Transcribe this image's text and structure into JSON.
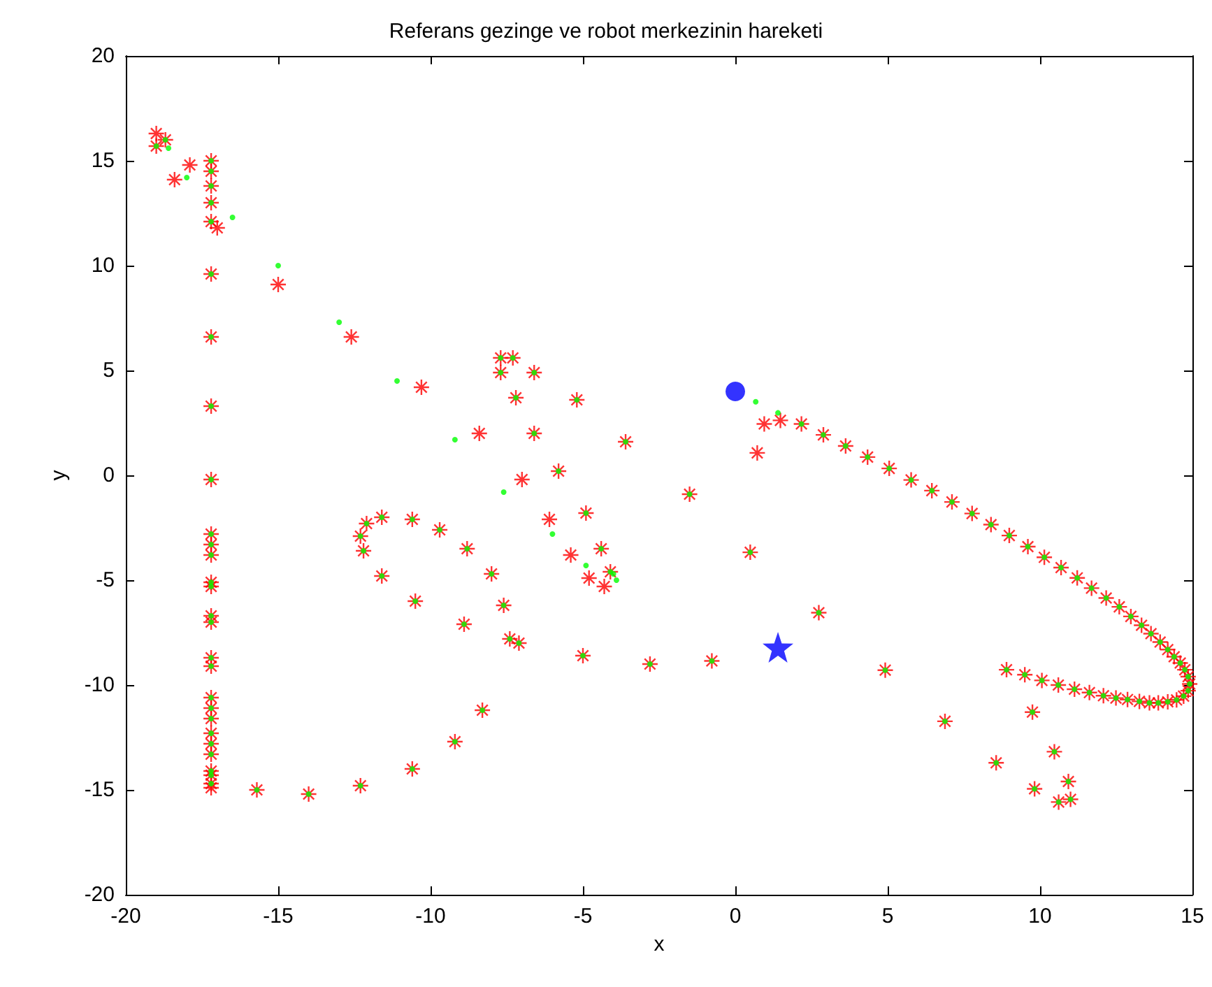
{
  "chart_data": {
    "type": "scatter",
    "title": "Referans gezinge ve robot merkezinin hareketi",
    "xlabel": "x",
    "ylabel": "y",
    "xlim": [
      -20,
      15
    ],
    "ylim": [
      -20,
      20
    ],
    "xticks": [
      -20,
      -15,
      -10,
      -5,
      0,
      5,
      10,
      15
    ],
    "yticks": [
      -20,
      -15,
      -10,
      -5,
      0,
      5,
      10,
      15,
      20
    ],
    "grid": false,
    "series": [
      {
        "color": "#ff0000",
        "marker": "cross",
        "x": [
          -19,
          -18.7,
          -19,
          -18.4,
          -17.9,
          -17.2,
          -17.2,
          -17.2,
          -17.2,
          -17.2,
          -17.0,
          -17.2,
          -15,
          -12.6,
          -10.3,
          -17.2,
          -17.2,
          -17.2,
          -7.7,
          -7.3,
          -7.7,
          -6.6,
          -7.2,
          -5.2,
          -6.6,
          -8.4,
          -3.6,
          -7.0,
          -5.8,
          -1.5,
          -6.1,
          -4.9,
          -5.4,
          -4.4,
          -4.8,
          -4.3,
          -4.1,
          0.49,
          2.74,
          -9.7,
          -10.6,
          -11.6,
          -12.1,
          -12.3,
          -12.2,
          -11.6,
          -10.5,
          -8.9,
          -8.0,
          -8.8,
          -7.6,
          -7.4,
          -7.1,
          -8.3,
          -9.2,
          -10.6,
          -12.3,
          -14.0,
          -15.7,
          -5.0,
          -2.8,
          -0.77,
          4.92,
          -17.2,
          -17.2,
          -17.2,
          -17.2,
          -17.2,
          -17.2,
          -17.2,
          -17.2,
          -17.2,
          -17.2,
          -17.2,
          -17.2,
          -17.2,
          -17.2,
          -17.2,
          -17.2,
          -17.2,
          -17.2,
          -17.2,
          0.72,
          0.95,
          1.48,
          2.17,
          2.89,
          3.62,
          4.34,
          5.05,
          5.77,
          6.45,
          7.11,
          7.77,
          8.39,
          8.99,
          9.6,
          10.14,
          10.69,
          11.22,
          11.69,
          12.17,
          12.6,
          12.98,
          13.33,
          13.64,
          13.94,
          14.19,
          14.4,
          14.6,
          14.75,
          14.86,
          14.91,
          14.86,
          14.71,
          14.48,
          14.19,
          13.88,
          13.59,
          13.26,
          12.87,
          12.49,
          12.08,
          11.62,
          11.13,
          10.6,
          10.06,
          9.5,
          8.9,
          6.88,
          9.75,
          8.56,
          10.47,
          9.82,
          10.93,
          10.61,
          11.0
        ],
        "values": [
          16.3,
          16.0,
          15.7,
          14.1,
          14.8,
          15.0,
          14.5,
          13.8,
          13.0,
          12.1,
          11.8,
          9.6,
          9.1,
          6.6,
          4.2,
          6.6,
          3.3,
          -0.2,
          5.6,
          5.6,
          4.9,
          4.9,
          3.7,
          3.6,
          2.0,
          2.0,
          1.6,
          -0.2,
          0.2,
          -0.9,
          -2.1,
          -1.8,
          -3.8,
          -3.5,
          -4.9,
          -5.3,
          -4.6,
          -3.67,
          -6.55,
          -2.6,
          -2.1,
          -2.0,
          -2.3,
          -2.9,
          -3.6,
          -4.8,
          -6.0,
          -7.1,
          -4.7,
          -3.5,
          -6.2,
          -7.8,
          -8.0,
          -11.2,
          -12.7,
          -14.0,
          -14.8,
          -15.2,
          -15.0,
          -8.6,
          -9.0,
          -8.85,
          -9.29,
          -2.8,
          -3.3,
          -3.8,
          -5.1,
          -5.3,
          -6.7,
          -7.0,
          -8.7,
          -9.1,
          -10.6,
          -11.1,
          -11.6,
          -12.3,
          -12.8,
          -13.3,
          -14.1,
          -14.3,
          -14.7,
          -14.9,
          1.07,
          2.45,
          2.62,
          2.45,
          1.93,
          1.4,
          0.87,
          0.33,
          -0.22,
          -0.73,
          -1.27,
          -1.82,
          -2.35,
          -2.87,
          -3.4,
          -3.91,
          -4.4,
          -4.89,
          -5.38,
          -5.85,
          -6.27,
          -6.73,
          -7.15,
          -7.55,
          -7.95,
          -8.31,
          -8.65,
          -8.95,
          -9.27,
          -9.6,
          -9.95,
          -10.27,
          -10.53,
          -10.71,
          -10.8,
          -10.85,
          -10.85,
          -10.78,
          -10.69,
          -10.62,
          -10.51,
          -10.36,
          -10.2,
          -10.0,
          -9.78,
          -9.51,
          -9.27,
          -11.73,
          -11.29,
          -13.71,
          -13.18,
          -14.95,
          -14.6,
          -15.58,
          -15.45
        ]
      },
      {
        "color": "#00ff00",
        "marker": "circle",
        "x": [
          -18.7,
          -19,
          -17.2,
          -17.2,
          -17.2,
          -17.2,
          -17.2,
          -17.2,
          -17.2,
          -17.2,
          -7.7,
          -7.3,
          -7.7,
          -6.6,
          -7.2,
          -5.2,
          -6.6,
          -3.6,
          -5.8,
          -1.5,
          -4.9,
          -4.4,
          -4.1,
          0.49,
          2.74,
          -9.7,
          -10.6,
          -11.6,
          -12.1,
          -12.3,
          -12.2,
          -11.6,
          -10.5,
          -8.9,
          -8.0,
          -8.8,
          -7.6,
          -7.4,
          -7.1,
          -8.3,
          -9.2,
          -10.6,
          -12.3,
          -14.0,
          -15.7,
          -5.0,
          -2.8,
          -0.77,
          4.92,
          -17.2,
          -17.2,
          -17.2,
          -17.2,
          -17.2,
          -17.2,
          -17.2,
          -17.2,
          -17.2,
          -17.2,
          -17.2,
          -17.2,
          -17.2,
          -17.2,
          -17.2,
          -17.2,
          -17.2,
          -17.2,
          -17.2,
          2.17,
          2.89,
          3.62,
          4.34,
          5.05,
          5.77,
          6.45,
          7.11,
          7.77,
          8.39,
          8.99,
          9.6,
          10.14,
          10.69,
          11.22,
          11.69,
          12.17,
          12.6,
          12.98,
          13.33,
          13.64,
          13.94,
          14.19,
          14.4,
          14.6,
          14.75,
          14.86,
          14.91,
          14.86,
          14.71,
          14.48,
          14.19,
          13.88,
          13.59,
          13.26,
          12.87,
          12.49,
          12.08,
          11.62,
          11.13,
          10.6,
          10.06,
          9.5,
          8.9,
          6.88,
          9.75,
          8.56,
          10.47,
          9.82,
          10.93,
          10.61,
          11.0,
          -18.6,
          -18.0,
          -16.5,
          -15,
          -13,
          -11.1,
          -9.2,
          -7.6,
          -6.0,
          -4.9,
          -3.9,
          -4.0,
          0.67,
          1.4
        ],
        "values": [
          16.0,
          15.7,
          15.0,
          14.5,
          13.8,
          13.0,
          12.1,
          9.6,
          6.6,
          3.3,
          5.6,
          5.6,
          4.9,
          4.9,
          3.7,
          3.6,
          2.0,
          1.6,
          0.2,
          -0.9,
          -1.8,
          -3.5,
          -4.6,
          -3.67,
          -6.55,
          -2.6,
          -2.1,
          -2.0,
          -2.3,
          -2.9,
          -3.6,
          -4.8,
          -6.0,
          -7.1,
          -4.7,
          -3.5,
          -6.2,
          -7.8,
          -8.0,
          -11.2,
          -12.7,
          -14.0,
          -14.8,
          -15.2,
          -15.0,
          -8.6,
          -9.0,
          -8.85,
          -9.29,
          -0.2,
          -2.8,
          -3.3,
          -3.8,
          -5.1,
          -5.3,
          -6.7,
          -7.0,
          -8.7,
          -9.1,
          -10.6,
          -11.1,
          -11.6,
          -12.3,
          -12.8,
          -13.3,
          -14.1,
          -14.3,
          -14.7,
          2.45,
          1.93,
          1.4,
          0.87,
          0.33,
          -0.22,
          -0.73,
          -1.27,
          -1.82,
          -2.35,
          -2.87,
          -3.4,
          -3.91,
          -4.4,
          -4.89,
          -5.38,
          -5.85,
          -6.27,
          -6.73,
          -7.15,
          -7.55,
          -7.95,
          -8.31,
          -8.65,
          -8.95,
          -9.27,
          -9.6,
          -9.95,
          -10.27,
          -10.53,
          -10.71,
          -10.8,
          -10.85,
          -10.85,
          -10.78,
          -10.69,
          -10.62,
          -10.51,
          -10.36,
          -10.2,
          -10.0,
          -9.78,
          -9.51,
          -9.27,
          -11.73,
          -11.29,
          -13.71,
          -13.18,
          -14.95,
          -14.6,
          -15.58,
          -15.45,
          15.6,
          14.2,
          12.3,
          10.0,
          7.3,
          4.5,
          1.7,
          -0.8,
          -2.8,
          -4.3,
          -5.0,
          -4.7,
          3.51,
          2.98
        ]
      },
      {
        "color": "#0000ff",
        "marker": "circle",
        "x": [
          0
        ],
        "values": [
          4
        ]
      },
      {
        "color": "#0000ff",
        "marker": "star",
        "x": [
          1.4
        ],
        "values": [
          -8.2
        ]
      }
    ]
  }
}
